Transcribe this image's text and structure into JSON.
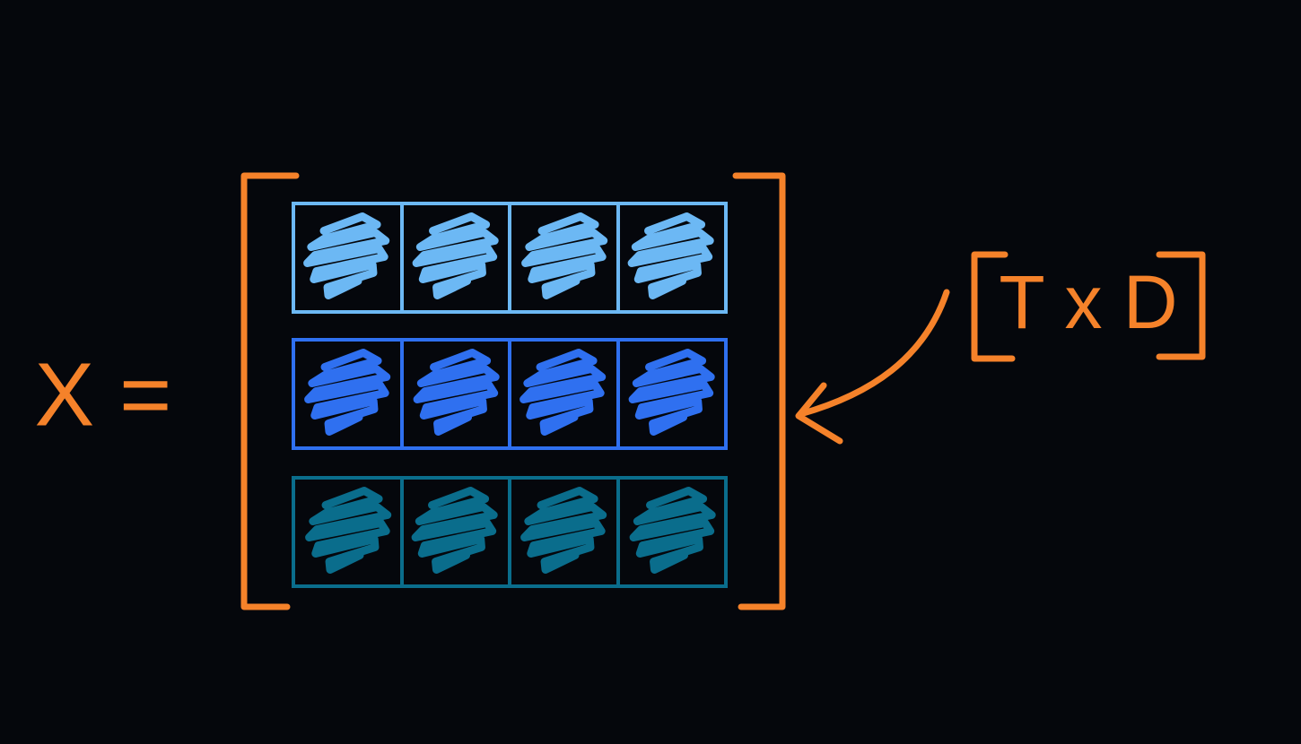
{
  "equation_label": "X =",
  "shape_annotation": "T x D"
}
